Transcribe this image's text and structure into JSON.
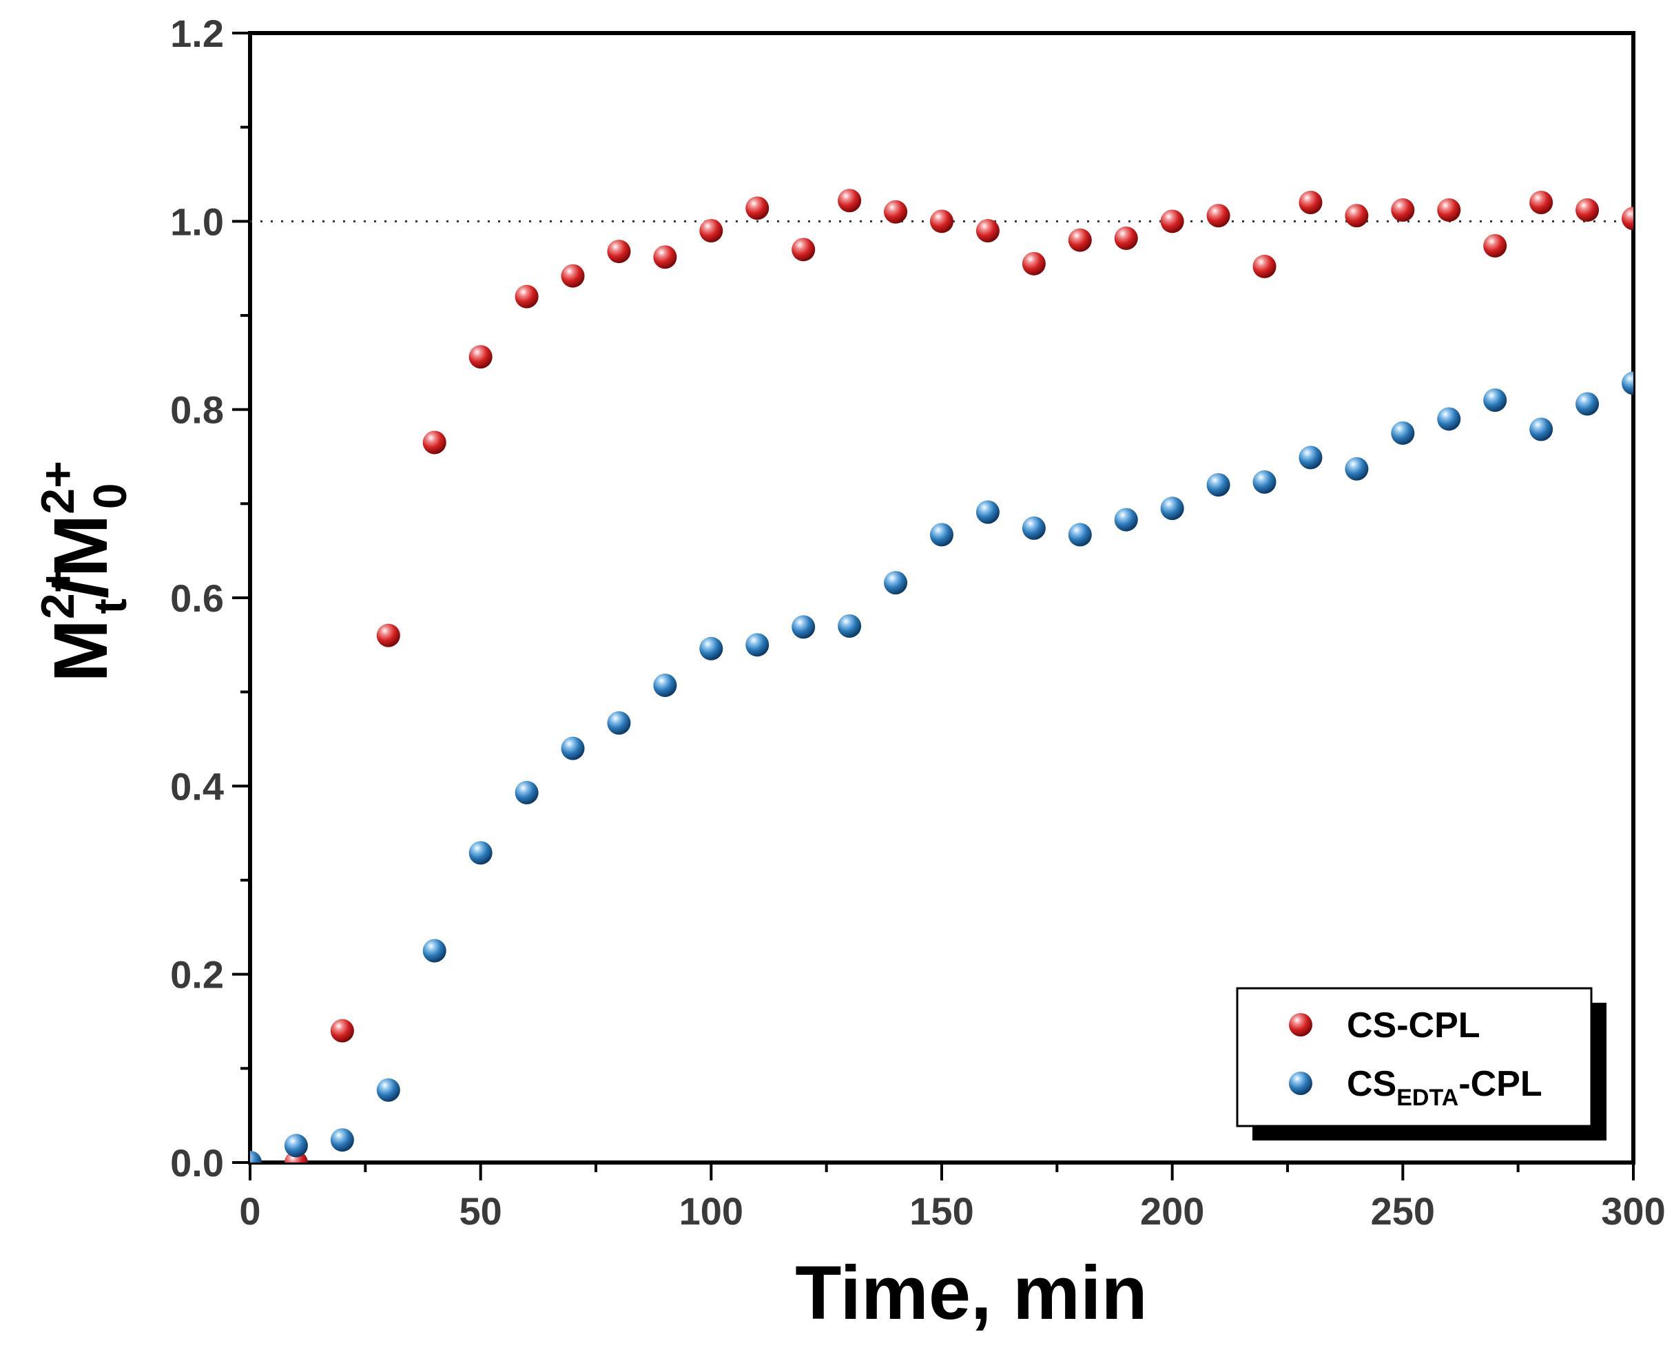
{
  "chart_data": {
    "type": "scatter",
    "xlabel": "Time, min",
    "ylabel": {
      "parts": [
        {
          "text": "M",
          "style": "normal"
        },
        {
          "text": "2+",
          "style": "sup"
        },
        {
          "text": "t",
          "style": "sub"
        },
        {
          "text": "/M",
          "style": "normal"
        },
        {
          "text": "2+",
          "style": "sup"
        },
        {
          "text": "0",
          "style": "sub"
        }
      ]
    },
    "xlim": [
      0,
      300
    ],
    "ylim": [
      0,
      1.2
    ],
    "x_ticks": [
      "0",
      "50",
      "100",
      "150",
      "200",
      "250",
      "300"
    ],
    "y_ticks": [
      "0.0",
      "0.2",
      "0.4",
      "0.6",
      "0.8",
      "1.0",
      "1.2"
    ],
    "reference_line": {
      "y": 1.0,
      "style": "dotted"
    },
    "legend": {
      "position": "bottom-right"
    },
    "series": [
      {
        "name": "CS-CPL",
        "label_main": "CS-CPL",
        "label_sub": "",
        "label_suffix": "",
        "color": "#d42020",
        "x": [
          0,
          10,
          20,
          30,
          40,
          50,
          60,
          70,
          80,
          90,
          100,
          110,
          120,
          130,
          140,
          150,
          160,
          170,
          180,
          190,
          200,
          210,
          220,
          230,
          240,
          250,
          260,
          270,
          280,
          290,
          300
        ],
        "y": [
          0.0,
          0.0,
          0.14,
          0.56,
          0.765,
          0.856,
          0.92,
          0.942,
          0.968,
          0.962,
          0.99,
          1.014,
          0.97,
          1.022,
          1.01,
          1.0,
          0.99,
          0.955,
          0.98,
          0.982,
          1.0,
          1.006,
          0.952,
          1.02,
          1.006,
          1.012,
          1.012,
          0.974,
          1.02,
          1.012,
          1.003
        ]
      },
      {
        "name": "CS_EDTA-CPL",
        "label_main": "CS",
        "label_sub": "EDTA",
        "label_suffix": "-CPL",
        "color": "#2a78b8",
        "x": [
          0,
          10,
          20,
          30,
          40,
          50,
          60,
          70,
          80,
          90,
          100,
          110,
          120,
          130,
          140,
          150,
          160,
          170,
          180,
          190,
          200,
          210,
          220,
          230,
          240,
          250,
          260,
          270,
          280,
          290,
          300
        ],
        "y": [
          0.0,
          0.018,
          0.024,
          0.077,
          0.225,
          0.329,
          0.393,
          0.44,
          0.467,
          0.507,
          0.546,
          0.55,
          0.569,
          0.57,
          0.616,
          0.667,
          0.691,
          0.674,
          0.667,
          0.683,
          0.695,
          0.72,
          0.723,
          0.749,
          0.737,
          0.775,
          0.79,
          0.81,
          0.779,
          0.806,
          0.828
        ]
      }
    ]
  }
}
